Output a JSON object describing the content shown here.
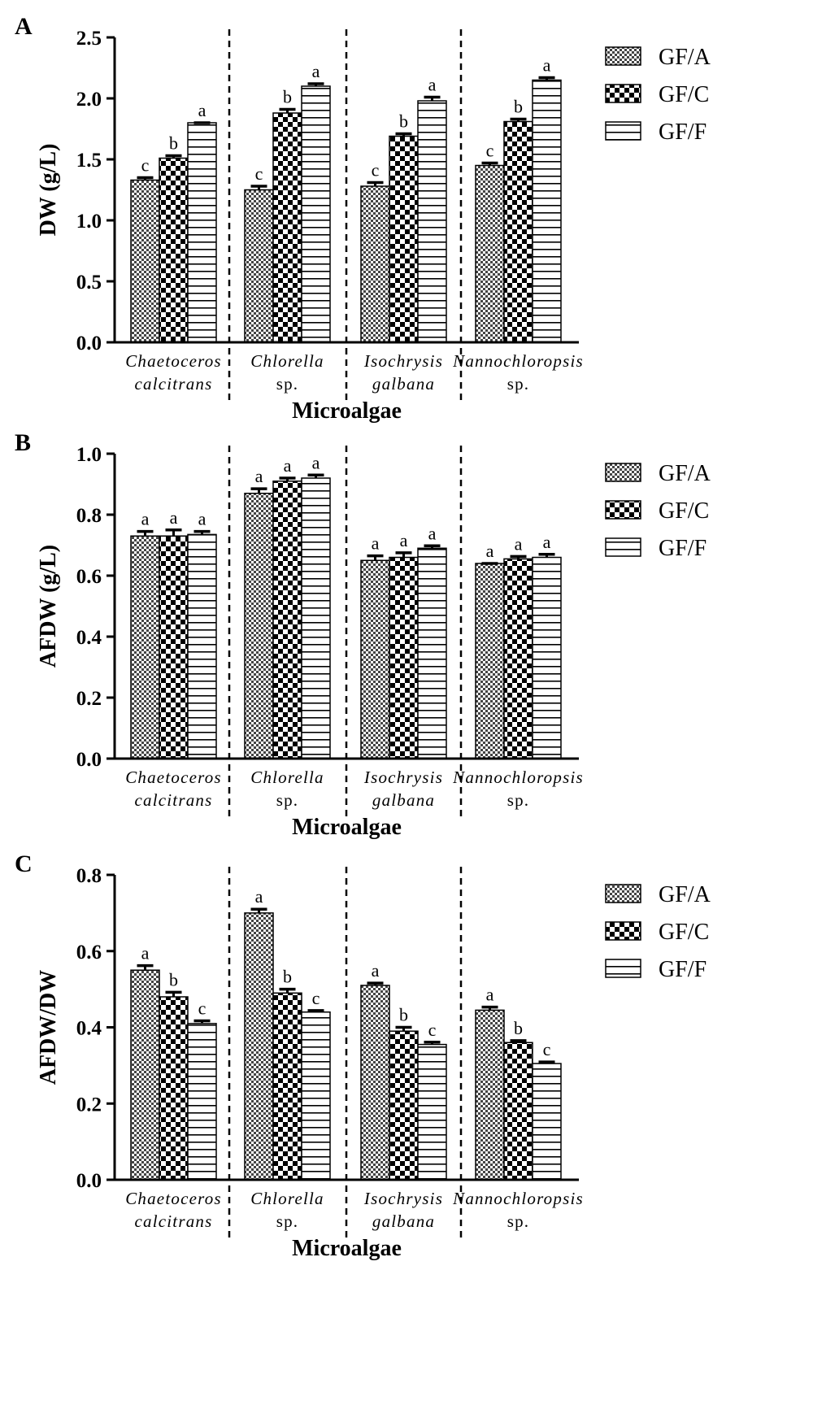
{
  "legend_entries": [
    "GF/A",
    "GF/C",
    "GF/F"
  ],
  "chart_data": [
    {
      "type": "bar",
      "panel_label": "A",
      "ylabel": "DW (g/L)",
      "xlabel": "Microalgae",
      "ylim": [
        0,
        2.5
      ],
      "yticks": [
        "0.0",
        "0.5",
        "1.0",
        "1.5",
        "2.0",
        "2.5"
      ],
      "legend_position": "top-right",
      "categories": [
        {
          "line1": "Chaetoceros",
          "line2": "calcitrans",
          "italic1": true,
          "italic2": true
        },
        {
          "line1": "Chlorella",
          "line2": "sp.",
          "italic1": true,
          "italic2": false
        },
        {
          "line1": "Isochrysis",
          "line2": "galbana",
          "italic1": true,
          "italic2": true
        },
        {
          "line1": "Nannochloropsis",
          "line2": "sp.",
          "italic1": true,
          "italic2": false
        }
      ],
      "series": [
        {
          "name": "GF/A",
          "values": [
            1.33,
            1.25,
            1.28,
            1.45
          ],
          "errors": [
            0.02,
            0.03,
            0.03,
            0.02
          ],
          "letters": [
            "c",
            "c",
            "c",
            "c"
          ]
        },
        {
          "name": "GF/C",
          "values": [
            1.51,
            1.88,
            1.69,
            1.81
          ],
          "errors": [
            0.02,
            0.03,
            0.02,
            0.02
          ],
          "letters": [
            "b",
            "b",
            "b",
            "b"
          ]
        },
        {
          "name": "GF/F",
          "values": [
            1.8,
            2.1,
            1.98,
            2.15
          ],
          "errors": [
            0.0,
            0.02,
            0.03,
            0.02
          ],
          "letters": [
            "a",
            "a",
            "a",
            "a"
          ]
        }
      ]
    },
    {
      "type": "bar",
      "panel_label": "B",
      "ylabel": "AFDW (g/L)",
      "xlabel": "Microalgae",
      "ylim": [
        0,
        1.0
      ],
      "yticks": [
        "0.0",
        "0.2",
        "0.4",
        "0.6",
        "0.8",
        "1.0"
      ],
      "legend_position": "top-right",
      "categories": [
        {
          "line1": "Chaetoceros",
          "line2": "calcitrans",
          "italic1": true,
          "italic2": true
        },
        {
          "line1": "Chlorella",
          "line2": "sp.",
          "italic1": true,
          "italic2": false
        },
        {
          "line1": "Isochrysis",
          "line2": "galbana",
          "italic1": true,
          "italic2": true
        },
        {
          "line1": "Nannochloropsis",
          "line2": "sp.",
          "italic1": true,
          "italic2": false
        }
      ],
      "series": [
        {
          "name": "GF/A",
          "values": [
            0.73,
            0.87,
            0.65,
            0.64
          ],
          "errors": [
            0.015,
            0.015,
            0.015,
            0.0
          ],
          "letters": [
            "a",
            "a",
            "a",
            "a"
          ]
        },
        {
          "name": "GF/C",
          "values": [
            0.73,
            0.91,
            0.66,
            0.655
          ],
          "errors": [
            0.02,
            0.01,
            0.015,
            0.008
          ],
          "letters": [
            "a",
            "a",
            "a",
            "a"
          ]
        },
        {
          "name": "GF/F",
          "values": [
            0.735,
            0.92,
            0.69,
            0.66
          ],
          "errors": [
            0.01,
            0.01,
            0.008,
            0.01
          ],
          "letters": [
            "a",
            "a",
            "a",
            "a"
          ]
        }
      ]
    },
    {
      "type": "bar",
      "panel_label": "C",
      "ylabel": "AFDW/DW",
      "xlabel": "Microalgae",
      "ylim": [
        0,
        0.8
      ],
      "yticks": [
        "0.0",
        "0.2",
        "0.4",
        "0.6",
        "0.8"
      ],
      "legend_position": "top-right",
      "categories": [
        {
          "line1": "Chaetoceros",
          "line2": "calcitrans",
          "italic1": true,
          "italic2": true
        },
        {
          "line1": "Chlorella",
          "line2": "sp.",
          "italic1": true,
          "italic2": false
        },
        {
          "line1": "Isochrysis",
          "line2": "galbana",
          "italic1": true,
          "italic2": true
        },
        {
          "line1": "Nannochloropsis",
          "line2": "sp.",
          "italic1": true,
          "italic2": false
        }
      ],
      "series": [
        {
          "name": "GF/A",
          "values": [
            0.55,
            0.7,
            0.51,
            0.445
          ],
          "errors": [
            0.012,
            0.01,
            0.006,
            0.008
          ],
          "letters": [
            "a",
            "a",
            "a",
            "a"
          ]
        },
        {
          "name": "GF/C",
          "values": [
            0.48,
            0.49,
            0.39,
            0.36
          ],
          "errors": [
            0.012,
            0.01,
            0.01,
            0.005
          ],
          "letters": [
            "b",
            "b",
            "b",
            "b"
          ]
        },
        {
          "name": "GF/F",
          "values": [
            0.41,
            0.44,
            0.355,
            0.305
          ],
          "errors": [
            0.007,
            0.004,
            0.006,
            0.004
          ],
          "letters": [
            "c",
            "c",
            "c",
            "c"
          ]
        }
      ]
    }
  ]
}
